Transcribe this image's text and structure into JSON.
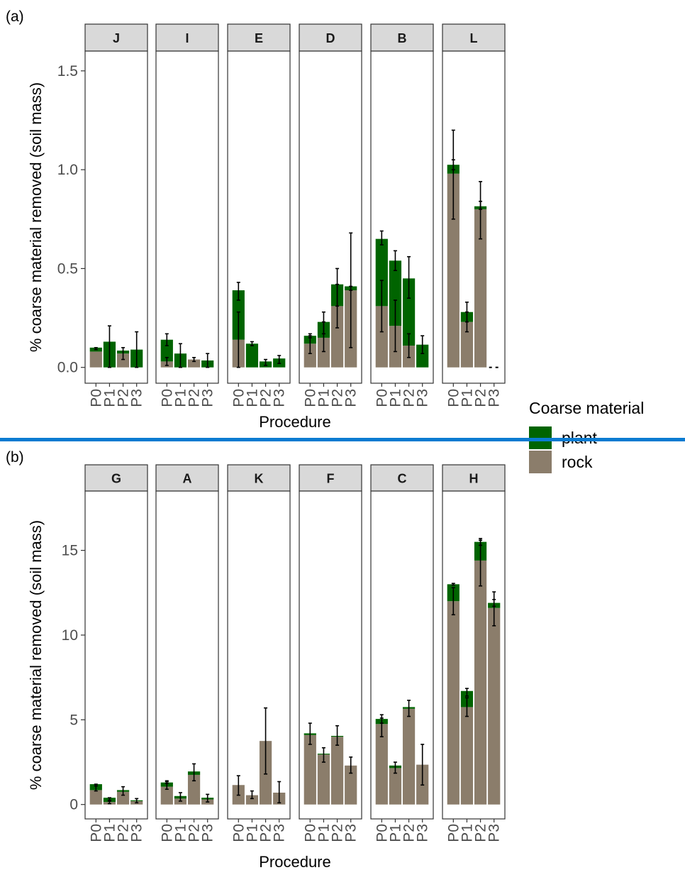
{
  "colors": {
    "plant": "#006400",
    "rock": "#8b7d6b",
    "strip_fill": "#d9d9d9",
    "strip_border": "#333333",
    "panel_border": "#333333",
    "error_bar": "#000000",
    "divider": "#0a7bd1"
  },
  "legend": {
    "title": "Coarse material",
    "items": [
      {
        "label": "plant",
        "color": "#006400"
      },
      {
        "label": "rock",
        "color": "#8b7d6b"
      }
    ]
  },
  "chart_data": [
    {
      "panel_label": "(a)",
      "type": "bar",
      "stacked": true,
      "xlabel": "Procedure",
      "ylabel": "% coarse material removed (soil mass)",
      "ylim": [
        -0.08,
        1.6
      ],
      "yticks": [
        0.0,
        0.5,
        1.0,
        1.5
      ],
      "ytick_labels": [
        "0.0",
        "0.5",
        "1.0",
        "1.5"
      ],
      "categories": [
        "P0",
        "P1",
        "P2",
        "P3"
      ],
      "facets": [
        {
          "label": "J",
          "rock": [
            0.08,
            0.0,
            0.07,
            0.0
          ],
          "plant": [
            0.02,
            0.13,
            0.015,
            0.09
          ],
          "errors": [
            {
              "x": "P0",
              "y": 0.09,
              "lo": 0.09,
              "hi": 0.1
            },
            {
              "x": "P1",
              "y": 0.07,
              "lo": 0.0,
              "hi": 0.21
            },
            {
              "x": "P2",
              "y": 0.06,
              "lo": 0.04,
              "hi": 0.1
            },
            {
              "x": "P3",
              "y": 0.08,
              "lo": 0.0,
              "hi": 0.18
            }
          ]
        },
        {
          "label": "I",
          "rock": [
            0.03,
            0.0,
            0.04,
            0.0
          ],
          "plant": [
            0.11,
            0.07,
            0.0,
            0.035
          ],
          "errors": [
            {
              "x": "P0",
              "y": 0.14,
              "lo": 0.11,
              "hi": 0.17
            },
            {
              "x": "P0",
              "y": 0.03,
              "lo": 0.01,
              "hi": 0.05
            },
            {
              "x": "P1",
              "y": 0.06,
              "lo": 0.0,
              "hi": 0.12
            },
            {
              "x": "P2",
              "y": 0.04,
              "lo": 0.03,
              "hi": 0.05
            },
            {
              "x": "P3",
              "y": 0.03,
              "lo": 0.0,
              "hi": 0.07
            }
          ]
        },
        {
          "label": "E",
          "rock": [
            0.14,
            0.0,
            0.0,
            0.0
          ],
          "plant": [
            0.25,
            0.12,
            0.03,
            0.045
          ],
          "errors": [
            {
              "x": "P0",
              "y": 0.39,
              "lo": 0.34,
              "hi": 0.43
            },
            {
              "x": "P0",
              "y": 0.14,
              "lo": 0.0,
              "hi": 0.28
            },
            {
              "x": "P1",
              "y": 0.12,
              "lo": 0.11,
              "hi": 0.13
            },
            {
              "x": "P2",
              "y": 0.02,
              "lo": 0.01,
              "hi": 0.04
            },
            {
              "x": "P3",
              "y": 0.04,
              "lo": 0.02,
              "hi": 0.06
            }
          ]
        },
        {
          "label": "D",
          "rock": [
            0.12,
            0.15,
            0.31,
            0.39
          ],
          "plant": [
            0.04,
            0.08,
            0.11,
            0.02
          ],
          "errors": [
            {
              "x": "P0",
              "y": 0.16,
              "lo": 0.15,
              "hi": 0.17
            },
            {
              "x": "P0",
              "y": 0.12,
              "lo": 0.07,
              "hi": 0.16
            },
            {
              "x": "P1",
              "y": 0.23,
              "lo": 0.17,
              "hi": 0.28
            },
            {
              "x": "P1",
              "y": 0.15,
              "lo": 0.08,
              "hi": 0.23
            },
            {
              "x": "P2",
              "y": 0.41,
              "lo": 0.31,
              "hi": 0.5
            },
            {
              "x": "P2",
              "y": 0.31,
              "lo": 0.2,
              "hi": 0.42
            },
            {
              "x": "P3",
              "y": 0.4,
              "lo": 0.39,
              "hi": 0.41
            },
            {
              "x": "P3",
              "y": 0.39,
              "lo": 0.1,
              "hi": 0.68
            }
          ]
        },
        {
          "label": "B",
          "rock": [
            0.31,
            0.21,
            0.11,
            0.0
          ],
          "plant": [
            0.34,
            0.33,
            0.34,
            0.115
          ],
          "errors": [
            {
              "x": "P0",
              "y": 0.65,
              "lo": 0.62,
              "hi": 0.69
            },
            {
              "x": "P0",
              "y": 0.31,
              "lo": 0.18,
              "hi": 0.44
            },
            {
              "x": "P1",
              "y": 0.54,
              "lo": 0.49,
              "hi": 0.59
            },
            {
              "x": "P1",
              "y": 0.21,
              "lo": 0.08,
              "hi": 0.34
            },
            {
              "x": "P2",
              "y": 0.45,
              "lo": 0.35,
              "hi": 0.56
            },
            {
              "x": "P2",
              "y": 0.11,
              "lo": 0.05,
              "hi": 0.17
            },
            {
              "x": "P3",
              "y": 0.11,
              "lo": 0.07,
              "hi": 0.16
            }
          ]
        },
        {
          "label": "L",
          "rock": [
            0.98,
            0.23,
            0.8,
            0.0
          ],
          "plant": [
            0.045,
            0.05,
            0.015,
            0.0
          ],
          "errors": [
            {
              "x": "P0",
              "y": 1.02,
              "lo": 1.0,
              "hi": 1.05
            },
            {
              "x": "P0",
              "y": 0.98,
              "lo": 0.75,
              "hi": 1.2
            },
            {
              "x": "P1",
              "y": 0.27,
              "lo": 0.23,
              "hi": 0.33
            },
            {
              "x": "P1",
              "y": 0.23,
              "lo": 0.18,
              "hi": 0.28
            },
            {
              "x": "P2",
              "y": 0.81,
              "lo": 0.8,
              "hi": 0.84
            },
            {
              "x": "P2",
              "y": 0.8,
              "lo": 0.65,
              "hi": 0.94
            }
          ]
        }
      ]
    },
    {
      "panel_label": "(b)",
      "type": "bar",
      "stacked": true,
      "xlabel": "Procedure",
      "ylabel": "% coarse material removed (soil mass)",
      "ylim": [
        -0.85,
        18.5
      ],
      "yticks": [
        0,
        5,
        10,
        15
      ],
      "ytick_labels": [
        "0",
        "5",
        "10",
        "15"
      ],
      "categories": [
        "P0",
        "P1",
        "P2",
        "P3"
      ],
      "facets": [
        {
          "label": "G",
          "rock": [
            0.85,
            0.15,
            0.75,
            0.2
          ],
          "plant": [
            0.35,
            0.25,
            0.1,
            0.05
          ],
          "errors": [
            {
              "x": "P0",
              "y": 1.15,
              "lo": 1.1,
              "hi": 1.2
            },
            {
              "x": "P0",
              "y": 0.95,
              "lo": 0.8,
              "hi": 1.1
            },
            {
              "x": "P1",
              "y": 0.3,
              "lo": 0.2,
              "hi": 0.4
            },
            {
              "x": "P1",
              "y": 0.15,
              "lo": 0.05,
              "hi": 0.25
            },
            {
              "x": "P2",
              "y": 0.8,
              "lo": 0.55,
              "hi": 1.05
            },
            {
              "x": "P3",
              "y": 0.2,
              "lo": 0.1,
              "hi": 0.35
            }
          ]
        },
        {
          "label": "A",
          "rock": [
            1.05,
            0.35,
            1.75,
            0.3
          ],
          "plant": [
            0.25,
            0.15,
            0.2,
            0.1
          ],
          "errors": [
            {
              "x": "P0",
              "y": 1.3,
              "lo": 1.25,
              "hi": 1.35
            },
            {
              "x": "P0",
              "y": 1.15,
              "lo": 0.9,
              "hi": 1.4
            },
            {
              "x": "P1",
              "y": 0.45,
              "lo": 0.2,
              "hi": 0.7
            },
            {
              "x": "P2",
              "y": 1.9,
              "lo": 1.4,
              "hi": 2.4
            },
            {
              "x": "P3",
              "y": 0.35,
              "lo": 0.15,
              "hi": 0.6
            }
          ]
        },
        {
          "label": "K",
          "rock": [
            1.15,
            0.55,
            3.75,
            0.7
          ],
          "plant": [
            0.0,
            0.0,
            0.0,
            0.0
          ],
          "errors": [
            {
              "x": "P0",
              "y": 1.1,
              "lo": 0.55,
              "hi": 1.7
            },
            {
              "x": "P1",
              "y": 0.55,
              "lo": 0.35,
              "hi": 0.8
            },
            {
              "x": "P2",
              "y": 3.75,
              "lo": 1.8,
              "hi": 5.7
            },
            {
              "x": "P3",
              "y": 0.7,
              "lo": 0.1,
              "hi": 1.35
            }
          ]
        },
        {
          "label": "F",
          "rock": [
            4.1,
            2.95,
            4.0,
            2.3
          ],
          "plant": [
            0.1,
            0.05,
            0.05,
            0.0
          ],
          "errors": [
            {
              "x": "P0",
              "y": 4.15,
              "lo": 3.55,
              "hi": 4.8
            },
            {
              "x": "P1",
              "y": 2.9,
              "lo": 2.5,
              "hi": 3.35
            },
            {
              "x": "P2",
              "y": 4.05,
              "lo": 3.5,
              "hi": 4.65
            },
            {
              "x": "P3",
              "y": 2.3,
              "lo": 1.85,
              "hi": 2.8
            }
          ]
        },
        {
          "label": "C",
          "rock": [
            4.75,
            2.15,
            5.65,
            2.35
          ],
          "plant": [
            0.3,
            0.15,
            0.1,
            0.0
          ],
          "errors": [
            {
              "x": "P0",
              "y": 5.0,
              "lo": 4.8,
              "hi": 5.3
            },
            {
              "x": "P0",
              "y": 4.65,
              "lo": 4.0,
              "hi": 5.1
            },
            {
              "x": "P1",
              "y": 2.2,
              "lo": 1.85,
              "hi": 2.5
            },
            {
              "x": "P2",
              "y": 5.7,
              "lo": 5.2,
              "hi": 6.15
            },
            {
              "x": "P3",
              "y": 2.35,
              "lo": 1.15,
              "hi": 3.55
            }
          ]
        },
        {
          "label": "H",
          "rock": [
            12.0,
            5.75,
            14.4,
            11.6
          ],
          "plant": [
            1.0,
            0.95,
            1.1,
            0.3
          ],
          "errors": [
            {
              "x": "P0",
              "y": 13.0,
              "lo": 12.95,
              "hi": 13.05
            },
            {
              "x": "P0",
              "y": 12.0,
              "lo": 11.2,
              "hi": 12.8
            },
            {
              "x": "P1",
              "y": 6.6,
              "lo": 6.4,
              "hi": 6.85
            },
            {
              "x": "P1",
              "y": 5.8,
              "lo": 5.2,
              "hi": 6.3
            },
            {
              "x": "P2",
              "y": 15.5,
              "lo": 15.3,
              "hi": 15.7
            },
            {
              "x": "P2",
              "y": 14.4,
              "lo": 12.9,
              "hi": 15.6
            },
            {
              "x": "P3",
              "y": 11.9,
              "lo": 11.7,
              "hi": 12.1
            },
            {
              "x": "P3",
              "y": 11.6,
              "lo": 10.55,
              "hi": 12.55
            }
          ]
        }
      ]
    }
  ]
}
